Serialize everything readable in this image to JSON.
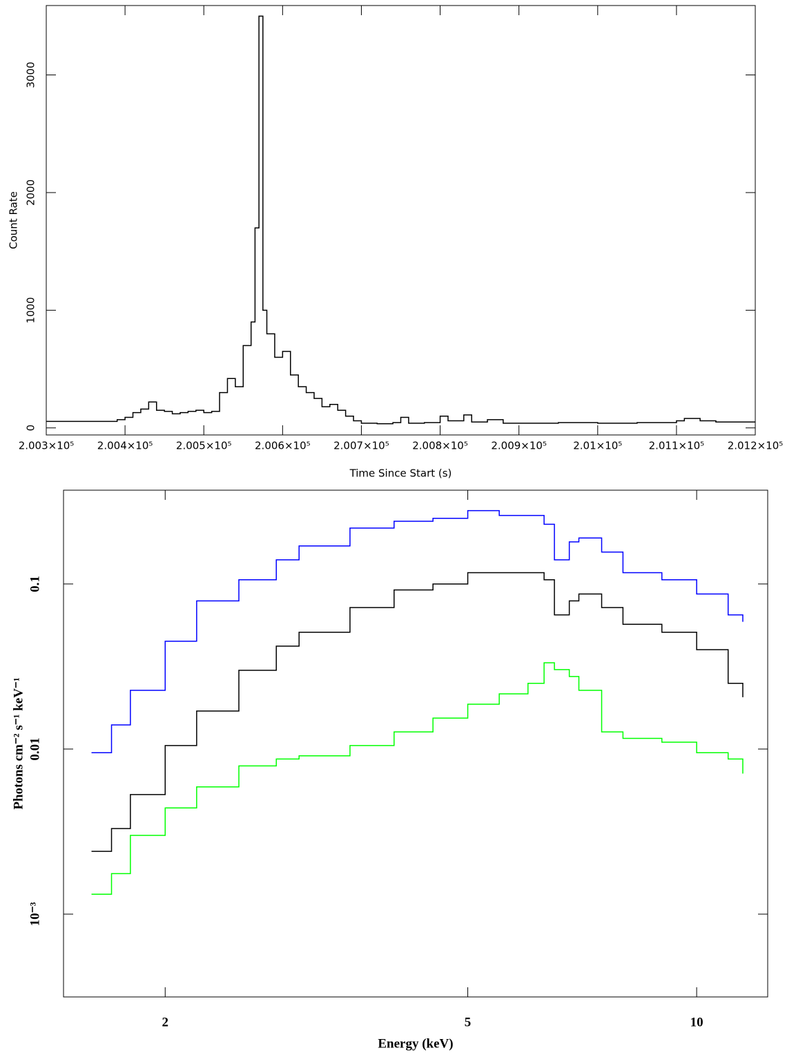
{
  "chart_data": [
    {
      "type": "line",
      "xlabel": "Time Since Start (s)",
      "ylabel": "Count Rate",
      "color": "#000000",
      "xlim": [
        200300,
        201200
      ],
      "ylim": [
        -60,
        3590
      ],
      "xticks": [
        {
          "value": 200300,
          "label": "2.003×10⁵"
        },
        {
          "value": 200400,
          "label": "2.004×10⁵"
        },
        {
          "value": 200500,
          "label": "2.005×10⁵"
        },
        {
          "value": 200600,
          "label": "2.006×10⁵"
        },
        {
          "value": 200700,
          "label": "2.007×10⁵"
        },
        {
          "value": 200800,
          "label": "2.008×10⁵"
        },
        {
          "value": 200900,
          "label": "2.009×10⁵"
        },
        {
          "value": 201000,
          "label": "2.01×10⁵"
        },
        {
          "value": 201100,
          "label": "2.011×10⁵"
        },
        {
          "value": 201200,
          "label": "2.012×10⁵"
        }
      ],
      "yticks": [
        0,
        1000,
        2000,
        3000
      ],
      "x": [
        200300,
        200385,
        200390,
        200400,
        200410,
        200420,
        200430,
        200440,
        200450,
        200460,
        200470,
        200480,
        200490,
        200500,
        200510,
        200520,
        200530,
        200540,
        200550,
        200560,
        200565,
        200570,
        200575,
        200580,
        200590,
        200600,
        200610,
        200620,
        200630,
        200640,
        200650,
        200660,
        200670,
        200680,
        200690,
        200700,
        200720,
        200740,
        200750,
        200760,
        200780,
        200800,
        200810,
        200830,
        200840,
        200860,
        200880,
        200900,
        200950,
        201000,
        201050,
        201100,
        201110,
        201130,
        201150,
        201200
      ],
      "values": [
        55,
        55,
        70,
        90,
        130,
        160,
        220,
        150,
        140,
        120,
        130,
        140,
        150,
        130,
        140,
        300,
        420,
        350,
        700,
        900,
        1700,
        3500,
        1000,
        800,
        600,
        650,
        450,
        350,
        300,
        250,
        180,
        200,
        150,
        100,
        60,
        40,
        35,
        45,
        90,
        40,
        45,
        100,
        60,
        110,
        50,
        70,
        40,
        40,
        45,
        40,
        45,
        60,
        80,
        60,
        50,
        50
      ]
    },
    {
      "type": "line",
      "xlabel": "Energy (keV)",
      "ylabel": "Photons cm⁻² s⁻¹ keV⁻¹",
      "xlog": true,
      "ylog": true,
      "xlim": [
        1.47,
        12.4
      ],
      "ylim": [
        0.000315,
        0.37
      ],
      "xticks": [
        2,
        5,
        10
      ],
      "yticks": [
        {
          "value": 0.001,
          "label": "10⁻³"
        },
        0.01,
        0.1
      ],
      "x": [
        1.6,
        1.7,
        1.8,
        2,
        2.2,
        2.5,
        2.8,
        3,
        3.5,
        4,
        4.5,
        5,
        5.5,
        6,
        6.3,
        6.5,
        6.8,
        7,
        7.5,
        8,
        9,
        10,
        11,
        11.5
      ],
      "series": [
        {
          "color": "#0000ff",
          "values": [
            0.0095,
            0.014,
            0.0227,
            0.045,
            0.079,
            0.106,
            0.14,
            0.17,
            0.218,
            0.24,
            0.25,
            0.278,
            0.26,
            0.26,
            0.23,
            0.14,
            0.18,
            0.19,
            0.156,
            0.117,
            0.106,
            0.087,
            0.065,
            0.059
          ]
        },
        {
          "color": "#000000",
          "values": [
            0.0024,
            0.0033,
            0.0053,
            0.0105,
            0.017,
            0.03,
            0.042,
            0.051,
            0.072,
            0.092,
            0.1,
            0.117,
            0.117,
            0.117,
            0.106,
            0.065,
            0.079,
            0.087,
            0.072,
            0.057,
            0.051,
            0.04,
            0.025,
            0.0206
          ]
        },
        {
          "color": "#00ff00",
          "values": [
            0.00132,
            0.00176,
            0.003,
            0.0044,
            0.0059,
            0.0079,
            0.0087,
            0.0091,
            0.0105,
            0.0127,
            0.0154,
            0.0187,
            0.0216,
            0.025,
            0.0333,
            0.0303,
            0.0275,
            0.0227,
            0.0127,
            0.0116,
            0.011,
            0.0095,
            0.0087,
            0.0071
          ]
        }
      ]
    }
  ]
}
